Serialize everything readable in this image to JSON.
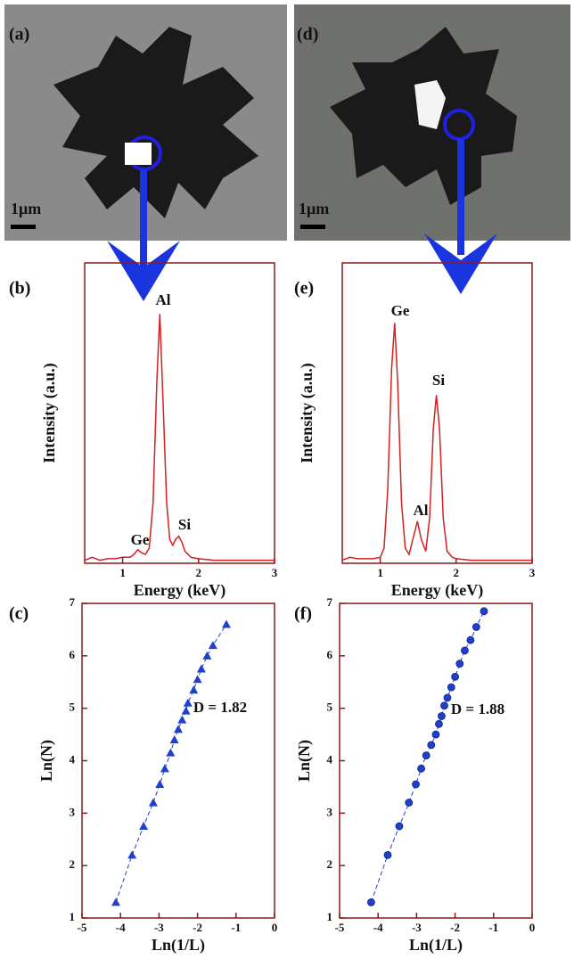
{
  "images": [
    {
      "label": "(a)",
      "scale_bar": "1μm"
    },
    {
      "label": "(d)",
      "scale_bar": "1μm"
    }
  ],
  "chart_data": [
    {
      "type": "line",
      "panel_label": "(b)",
      "x_label": "Energy (keV)",
      "y_label": "Intensity (a.u.)",
      "color": "#d42020",
      "x": [
        0.5,
        0.6,
        0.7,
        0.8,
        0.9,
        1.0,
        1.1,
        1.15,
        1.2,
        1.25,
        1.3,
        1.35,
        1.4,
        1.45,
        1.49,
        1.53,
        1.58,
        1.62,
        1.66,
        1.7,
        1.74,
        1.78,
        1.82,
        1.9,
        2.0,
        2.2,
        2.4,
        2.6,
        2.8,
        3.0
      ],
      "values": [
        1,
        2,
        1,
        1.5,
        1.5,
        2,
        2,
        3,
        4.5,
        3.5,
        3,
        5,
        20,
        60,
        83,
        55,
        20,
        8,
        6,
        8,
        9,
        7,
        4,
        2,
        1.5,
        1,
        1,
        1,
        1,
        1
      ],
      "xlim": [
        0.5,
        3
      ],
      "xticks": [
        1,
        2,
        3
      ],
      "ylim": [
        0,
        100
      ],
      "annotations": [
        "Al",
        "Ge",
        "Si"
      ]
    },
    {
      "type": "line",
      "panel_label": "(e)",
      "x_label": "Energy (keV)",
      "y_label": "Intensity (a.u.)",
      "color": "#d42020",
      "x": [
        0.5,
        0.6,
        0.7,
        0.8,
        0.9,
        1.0,
        1.05,
        1.1,
        1.15,
        1.19,
        1.23,
        1.28,
        1.33,
        1.38,
        1.43,
        1.49,
        1.54,
        1.6,
        1.65,
        1.7,
        1.74,
        1.78,
        1.83,
        1.88,
        1.95,
        2.0,
        2.2,
        2.4,
        2.6,
        2.8,
        3.0
      ],
      "values": [
        1,
        2,
        1.5,
        1.5,
        1.5,
        2,
        5,
        25,
        65,
        80,
        60,
        20,
        5,
        3,
        8,
        14,
        8,
        4,
        15,
        45,
        56,
        45,
        15,
        4,
        2,
        1.5,
        1,
        1,
        1,
        1,
        1
      ],
      "xlim": [
        0.5,
        3
      ],
      "xticks": [
        1,
        2,
        3
      ],
      "ylim": [
        0,
        100
      ],
      "annotations": [
        "Ge",
        "Al",
        "Si"
      ]
    },
    {
      "type": "scatter",
      "panel_label": "(c)",
      "x_label": "Ln(1/L)",
      "y_label": "Ln(N)",
      "color": "#1f3fd0",
      "marker": "triangle",
      "x": [
        -4.12,
        -3.7,
        -3.4,
        -3.15,
        -2.98,
        -2.85,
        -2.7,
        -2.6,
        -2.5,
        -2.4,
        -2.3,
        -2.25,
        -2.1,
        -2.0,
        -1.9,
        -1.75,
        -1.6,
        -1.25
      ],
      "values": [
        1.3,
        2.2,
        2.75,
        3.2,
        3.55,
        3.85,
        4.15,
        4.4,
        4.6,
        4.78,
        4.95,
        5.1,
        5.35,
        5.55,
        5.75,
        6.0,
        6.2,
        6.6
      ],
      "xlim": [
        -5,
        0
      ],
      "xticks": [
        -5,
        -4,
        -3,
        -2,
        -1,
        0
      ],
      "ylim": [
        1,
        7
      ],
      "yticks": [
        1,
        2,
        3,
        4,
        5,
        6,
        7
      ],
      "annotations": [
        "D = 1.82"
      ]
    },
    {
      "type": "scatter",
      "panel_label": "(f)",
      "x_label": "Ln(1/L)",
      "y_label": "Ln(N)",
      "color": "#1f3fd0",
      "marker": "circle",
      "x": [
        -4.18,
        -3.75,
        -3.45,
        -3.2,
        -3.02,
        -2.88,
        -2.75,
        -2.62,
        -2.5,
        -2.42,
        -2.35,
        -2.28,
        -2.2,
        -2.1,
        -2.0,
        -1.88,
        -1.75,
        -1.6,
        -1.45,
        -1.25
      ],
      "values": [
        1.3,
        2.2,
        2.75,
        3.2,
        3.55,
        3.85,
        4.1,
        4.3,
        4.5,
        4.7,
        4.85,
        5.05,
        5.2,
        5.4,
        5.6,
        5.85,
        6.1,
        6.3,
        6.55,
        6.85
      ],
      "xlim": [
        -5,
        0
      ],
      "xticks": [
        -5,
        -4,
        -3,
        -2,
        -1,
        0
      ],
      "ylim": [
        1,
        7
      ],
      "yticks": [
        1,
        2,
        3,
        4,
        5,
        6,
        7
      ],
      "annotations": [
        "D = 1.88"
      ]
    }
  ]
}
